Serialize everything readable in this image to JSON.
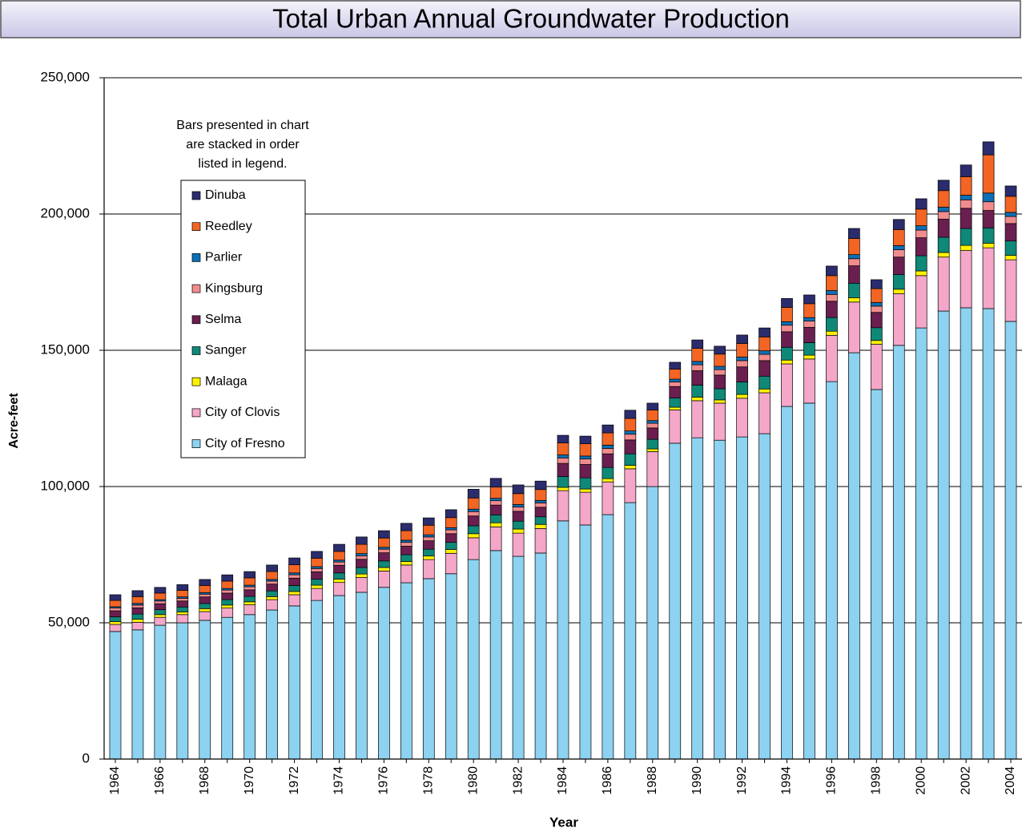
{
  "chart_data": {
    "type": "stacked_bar",
    "title": "Total Urban Annual Groundwater Production",
    "x_label": "Year",
    "y_label": "Acre-feet",
    "annotation": [
      "Bars presented in chart",
      "are stacked in order",
      "listed in legend."
    ],
    "categories": [
      "1964",
      null,
      "1966",
      null,
      "1968",
      null,
      "1970",
      null,
      "1972",
      null,
      "1974",
      null,
      "1976",
      null,
      "1978",
      null,
      "1980",
      null,
      "1982",
      null,
      "1984",
      null,
      "1986",
      null,
      "1988",
      null,
      "1990",
      null,
      "1992",
      null,
      "1994",
      null,
      "1996",
      null,
      "1998",
      null,
      "2000",
      null,
      "2002",
      null,
      "2004"
    ],
    "ylim": [
      0,
      250000
    ],
    "yticks": [
      0,
      {
        "value": 50000,
        "label": "50,000"
      },
      {
        "value": 100000,
        "label": "100,000"
      },
      {
        "value": 150000,
        "label": "150,000"
      },
      {
        "value": 200000,
        "label": "200,000"
      },
      {
        "value": 250000,
        "label": "250,000"
      }
    ],
    "grid": true,
    "series": [
      {
        "name": "Dinuba",
        "color": "#2b2c6e",
        "values": [
          2100,
          2200,
          2100,
          2100,
          2200,
          2300,
          2300,
          2400,
          2500,
          2500,
          2600,
          2700,
          2700,
          2700,
          2700,
          2900,
          3200,
          3200,
          3200,
          3100,
          2800,
          2800,
          2900,
          3000,
          2500,
          2500,
          3100,
          2900,
          3100,
          3300,
          3300,
          3200,
          3500,
          3700,
          3300,
          3700,
          3800,
          3800,
          4300,
          4800,
          3800
        ]
      },
      {
        "name": "Reedley",
        "color": "#f26524",
        "values": [
          2300,
          2500,
          2400,
          2400,
          2600,
          2700,
          2700,
          2900,
          3000,
          3100,
          3200,
          3400,
          3400,
          3500,
          3500,
          3700,
          4100,
          4100,
          4000,
          4000,
          4400,
          4500,
          4500,
          4600,
          3900,
          3700,
          4800,
          4500,
          5000,
          5100,
          5200,
          5100,
          5500,
          5900,
          5100,
          5900,
          6100,
          6100,
          6800,
          14000,
          5900
        ]
      },
      {
        "name": "Parlier",
        "color": "#0c6fb5",
        "values": [
          500,
          600,
          500,
          500,
          600,
          600,
          600,
          600,
          700,
          700,
          700,
          800,
          700,
          800,
          800,
          800,
          900,
          900,
          900,
          900,
          1100,
          1100,
          1200,
          1200,
          1000,
          1000,
          1200,
          1200,
          1300,
          1300,
          1300,
          1300,
          1400,
          1500,
          1300,
          1500,
          1600,
          1600,
          1700,
          3200,
          1500
        ]
      },
      {
        "name": "Kingsburg",
        "color": "#f18c8e",
        "values": [
          1000,
          1000,
          1000,
          1000,
          1000,
          1100,
          1100,
          1100,
          1200,
          1200,
          1200,
          1300,
          1300,
          1400,
          1400,
          1400,
          1600,
          1600,
          1600,
          1600,
          2000,
          2000,
          2000,
          2100,
          1700,
          1700,
          2200,
          2000,
          2300,
          2300,
          2400,
          2300,
          2500,
          2600,
          2300,
          2700,
          2800,
          2800,
          3100,
          3200,
          2600
        ]
      },
      {
        "name": "Selma",
        "color": "#6a1f50",
        "values": [
          2200,
          2300,
          2200,
          2200,
          2400,
          2400,
          2400,
          2500,
          2700,
          2700,
          2800,
          3000,
          3000,
          3100,
          3100,
          3200,
          3600,
          3600,
          3600,
          3500,
          4800,
          4900,
          5000,
          5100,
          4200,
          4200,
          5300,
          5000,
          5500,
          5700,
          5700,
          5600,
          6000,
          6400,
          5600,
          6400,
          6600,
          6600,
          7400,
          6400,
          6400
        ]
      },
      {
        "name": "Sanger",
        "color": "#0f8878",
        "values": [
          1800,
          1900,
          1800,
          1800,
          1900,
          2000,
          2000,
          2100,
          2200,
          2200,
          2300,
          2400,
          2400,
          2500,
          2500,
          2600,
          2900,
          2900,
          2900,
          2800,
          4000,
          4100,
          4100,
          4200,
          3500,
          3400,
          4400,
          4100,
          4600,
          4700,
          4700,
          4600,
          5000,
          5300,
          4700,
          5400,
          5600,
          5600,
          6200,
          5600,
          5300
        ]
      },
      {
        "name": "Malaga",
        "color": "#fff200",
        "values": [
          1000,
          1100,
          1000,
          1000,
          1100,
          1100,
          1100,
          1100,
          1200,
          1200,
          1200,
          1300,
          1300,
          1300,
          1300,
          1400,
          1500,
          1500,
          1500,
          1500,
          1200,
          1200,
          1200,
          1300,
          1000,
          1000,
          1300,
          1200,
          1400,
          1400,
          1400,
          1400,
          1500,
          1600,
          1400,
          1600,
          1700,
          1700,
          1900,
          1700,
          1600
        ]
      },
      {
        "name": "City of Clovis",
        "color": "#f4a7c9",
        "values": [
          2600,
          2800,
          2900,
          3000,
          3200,
          3400,
          3600,
          3800,
          4100,
          4400,
          4800,
          5400,
          6000,
          6500,
          7000,
          7500,
          8000,
          8700,
          8500,
          9000,
          11100,
          12000,
          12000,
          12400,
          12800,
          12200,
          13600,
          13600,
          14200,
          15000,
          15600,
          16200,
          17000,
          18600,
          16600,
          19000,
          19200,
          19800,
          21000,
          22300,
          22600
        ]
      },
      {
        "name": "City of Fresno",
        "color": "#8dd2f0",
        "values": [
          46800,
          47400,
          49100,
          50000,
          50900,
          52000,
          53000,
          54700,
          56200,
          58200,
          60000,
          61200,
          63000,
          64700,
          66200,
          68000,
          73200,
          76500,
          74400,
          75600,
          87400,
          85900,
          89700,
          94100,
          100000,
          115900,
          117900,
          117000,
          118200,
          119400,
          129400,
          130600,
          138500,
          149100,
          135600,
          151800,
          158200,
          164400,
          165600,
          165300,
          160600
        ]
      }
    ]
  }
}
